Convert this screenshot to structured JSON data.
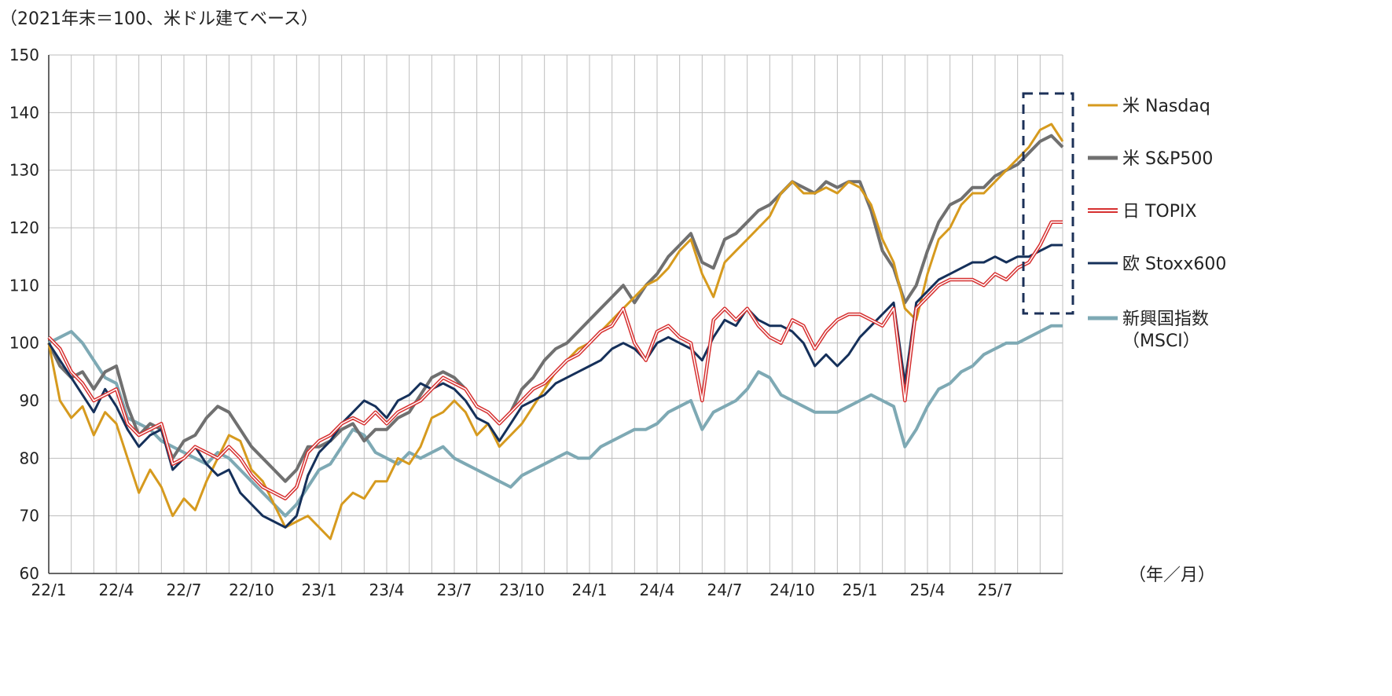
{
  "header": {
    "subtitle": "（2021年末＝100、米ドル建てベース）"
  },
  "units_note": "（年／月）",
  "chart_data": {
    "type": "line",
    "title": "",
    "subtitle": "（2021年末＝100、米ドル建てベース）",
    "xlabel": "（年／月）",
    "ylabel": "",
    "x_ticks": [
      "22/1",
      "22/4",
      "22/7",
      "22/10",
      "23/1",
      "23/4",
      "23/7",
      "23/10",
      "24/1",
      "24/4",
      "24/7",
      "24/10",
      "25/1",
      "25/4",
      "25/7"
    ],
    "x_range_months": [
      0,
      45
    ],
    "ylim": [
      60,
      150
    ],
    "y_ticks": [
      60,
      70,
      80,
      90,
      100,
      110,
      120,
      130,
      140,
      150
    ],
    "grid": true,
    "legend_position": "right",
    "x_months": [
      0,
      0.5,
      1,
      1.5,
      2,
      2.5,
      3,
      3.5,
      4,
      4.5,
      5,
      5.5,
      6,
      6.5,
      7,
      7.5,
      8,
      8.5,
      9,
      9.5,
      10,
      10.5,
      11,
      11.5,
      12,
      12.5,
      13,
      13.5,
      14,
      14.5,
      15,
      15.5,
      16,
      16.5,
      17,
      17.5,
      18,
      18.5,
      19,
      19.5,
      20,
      20.5,
      21,
      21.5,
      22,
      22.5,
      23,
      23.5,
      24,
      24.5,
      25,
      25.5,
      26,
      26.5,
      27,
      27.5,
      28,
      28.5,
      29,
      29.5,
      30,
      30.5,
      31,
      31.5,
      32,
      32.5,
      33,
      33.5,
      34,
      34.5,
      35,
      35.5,
      36,
      36.5,
      37,
      37.5,
      38,
      38.5,
      39,
      39.5,
      40,
      40.5,
      41,
      41.5,
      42,
      42.5,
      43,
      43.5,
      44,
      44.5,
      45
    ],
    "series": [
      {
        "name": "米 Nasdaq",
        "color": "#d69a1e",
        "width": 3,
        "values": [
          100,
          90,
          87,
          89,
          84,
          88,
          86,
          80,
          74,
          78,
          75,
          70,
          73,
          71,
          76,
          80,
          84,
          83,
          78,
          76,
          72,
          68,
          69,
          70,
          68,
          66,
          72,
          74,
          73,
          76,
          76,
          80,
          79,
          82,
          87,
          88,
          90,
          88,
          84,
          86,
          82,
          84,
          86,
          89,
          92,
          95,
          97,
          99,
          100,
          102,
          104,
          106,
          108,
          110,
          111,
          113,
          116,
          118,
          112,
          108,
          114,
          116,
          118,
          120,
          122,
          126,
          128,
          126,
          126,
          127,
          126,
          128,
          127,
          124,
          118,
          114,
          106,
          104,
          112,
          118,
          120,
          124,
          126,
          126,
          128,
          130,
          132,
          134,
          137,
          138,
          135
        ]
      },
      {
        "name": "米 S&P500",
        "color": "#707070",
        "width": 4,
        "values": [
          100,
          96,
          94,
          95,
          92,
          95,
          96,
          89,
          84,
          86,
          85,
          80,
          83,
          84,
          87,
          89,
          88,
          85,
          82,
          80,
          78,
          76,
          78,
          82,
          82,
          83,
          85,
          86,
          83,
          85,
          85,
          87,
          88,
          91,
          94,
          95,
          94,
          92,
          89,
          88,
          86,
          88,
          92,
          94,
          97,
          99,
          100,
          102,
          104,
          106,
          108,
          110,
          107,
          110,
          112,
          115,
          117,
          119,
          114,
          113,
          118,
          119,
          121,
          123,
          124,
          126,
          128,
          127,
          126,
          128,
          127,
          128,
          128,
          123,
          116,
          113,
          107,
          110,
          116,
          121,
          124,
          125,
          127,
          127,
          129,
          130,
          131,
          133,
          135,
          136,
          134
        ]
      },
      {
        "name": "日 TOPIX",
        "color": "#d63030",
        "width": 3,
        "double": true,
        "values": [
          101,
          99,
          95,
          93,
          90,
          91,
          92,
          86,
          84,
          85,
          86,
          79,
          80,
          82,
          81,
          80,
          82,
          80,
          77,
          75,
          74,
          73,
          75,
          81,
          83,
          84,
          86,
          87,
          86,
          88,
          86,
          88,
          89,
          90,
          92,
          94,
          93,
          92,
          89,
          88,
          86,
          88,
          90,
          92,
          93,
          95,
          97,
          98,
          100,
          102,
          103,
          106,
          100,
          97,
          102,
          103,
          101,
          100,
          90,
          104,
          106,
          104,
          106,
          103,
          101,
          100,
          104,
          103,
          99,
          102,
          104,
          105,
          105,
          104,
          103,
          106,
          90,
          106,
          108,
          110,
          111,
          111,
          111,
          110,
          112,
          111,
          113,
          114,
          117,
          121,
          121
        ]
      },
      {
        "name": "欧 Stoxx600",
        "color": "#15305a",
        "width": 3,
        "values": [
          100,
          97,
          94,
          91,
          88,
          92,
          89,
          85,
          82,
          84,
          85,
          78,
          80,
          82,
          79,
          77,
          78,
          74,
          72,
          70,
          69,
          68,
          70,
          77,
          81,
          83,
          86,
          88,
          90,
          89,
          87,
          90,
          91,
          93,
          92,
          93,
          92,
          90,
          87,
          86,
          83,
          86,
          89,
          90,
          91,
          93,
          94,
          95,
          96,
          97,
          99,
          100,
          99,
          97,
          100,
          101,
          100,
          99,
          97,
          101,
          104,
          103,
          106,
          104,
          103,
          103,
          102,
          100,
          96,
          98,
          96,
          98,
          101,
          103,
          105,
          107,
          93,
          107,
          109,
          111,
          112,
          113,
          114,
          114,
          115,
          114,
          115,
          115,
          116,
          117,
          117
        ]
      },
      {
        "name": "新興国指数",
        "name_sub": "（MSCI）",
        "color": "#7ea9b4",
        "width": 4,
        "values": [
          100,
          101,
          102,
          100,
          97,
          94,
          93,
          87,
          86,
          85,
          83,
          82,
          81,
          80,
          79,
          81,
          80,
          78,
          76,
          74,
          72,
          70,
          72,
          75,
          78,
          79,
          82,
          85,
          84,
          81,
          80,
          79,
          81,
          80,
          81,
          82,
          80,
          79,
          78,
          77,
          76,
          75,
          77,
          78,
          79,
          80,
          81,
          80,
          80,
          82,
          83,
          84,
          85,
          85,
          86,
          88,
          89,
          90,
          85,
          88,
          89,
          90,
          92,
          95,
          94,
          91,
          90,
          89,
          88,
          88,
          88,
          89,
          90,
          91,
          90,
          89,
          82,
          85,
          89,
          92,
          93,
          95,
          96,
          98,
          99,
          100,
          100,
          101,
          102,
          103,
          103
        ]
      }
    ]
  },
  "legend": [
    {
      "label": "米 Nasdaq",
      "color": "#d69a1e"
    },
    {
      "label": "米 S&P500",
      "color": "#707070"
    },
    {
      "label": "日 TOPIX",
      "color": "#d63030",
      "double": true
    },
    {
      "label": "欧 Stoxx600",
      "color": "#15305a"
    },
    {
      "label": "新興国指数",
      "sub": "（MSCI）",
      "color": "#7ea9b4"
    }
  ]
}
